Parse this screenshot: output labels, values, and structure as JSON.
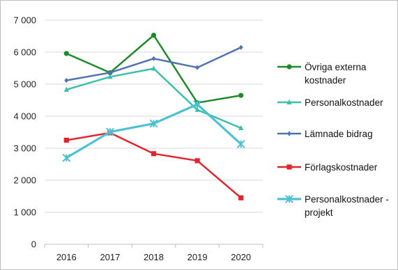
{
  "chart_data": {
    "type": "line",
    "title": "",
    "xlabel": "",
    "ylabel": "",
    "categories": [
      "2016",
      "2017",
      "2018",
      "2019",
      "2020"
    ],
    "ylim": [
      0,
      7000
    ],
    "yticks": [
      0,
      1000,
      2000,
      3000,
      4000,
      5000,
      6000,
      7000
    ],
    "ytick_labels": [
      "0",
      "1 000",
      "2 000",
      "3 000",
      "4 000",
      "5 000",
      "6 000",
      "7 000"
    ],
    "grid": "horizontal",
    "legend_position": "right",
    "series": [
      {
        "name": "Övriga externa kostnader",
        "name_lines": [
          "Övriga externa",
          "kostnader"
        ],
        "color": "#1e8a2a",
        "marker": "circle",
        "values": [
          5960,
          5360,
          6530,
          4420,
          4650
        ]
      },
      {
        "name": "Personalkostnader",
        "name_lines": [
          "Personalkostnader"
        ],
        "color": "#3cbfab",
        "marker": "triangle",
        "values": [
          4830,
          5230,
          5490,
          4200,
          3630
        ]
      },
      {
        "name": "Lämnade bidrag",
        "name_lines": [
          "Lämnade bidrag"
        ],
        "color": "#4f72b0",
        "marker": "diamond",
        "values": [
          5120,
          5360,
          5800,
          5520,
          6150
        ]
      },
      {
        "name": "Förlagskostnader",
        "name_lines": [
          "Förlagskostnader"
        ],
        "color": "#e0262c",
        "marker": "square",
        "values": [
          3250,
          3480,
          2830,
          2610,
          1450
        ]
      },
      {
        "name": "Personalkostnader - projekt",
        "name_lines": [
          "Personalkostnader -",
          "projekt"
        ],
        "color": "#4ec0d3",
        "marker": "x",
        "values": [
          2700,
          3510,
          3770,
          4370,
          3130
        ]
      }
    ]
  }
}
